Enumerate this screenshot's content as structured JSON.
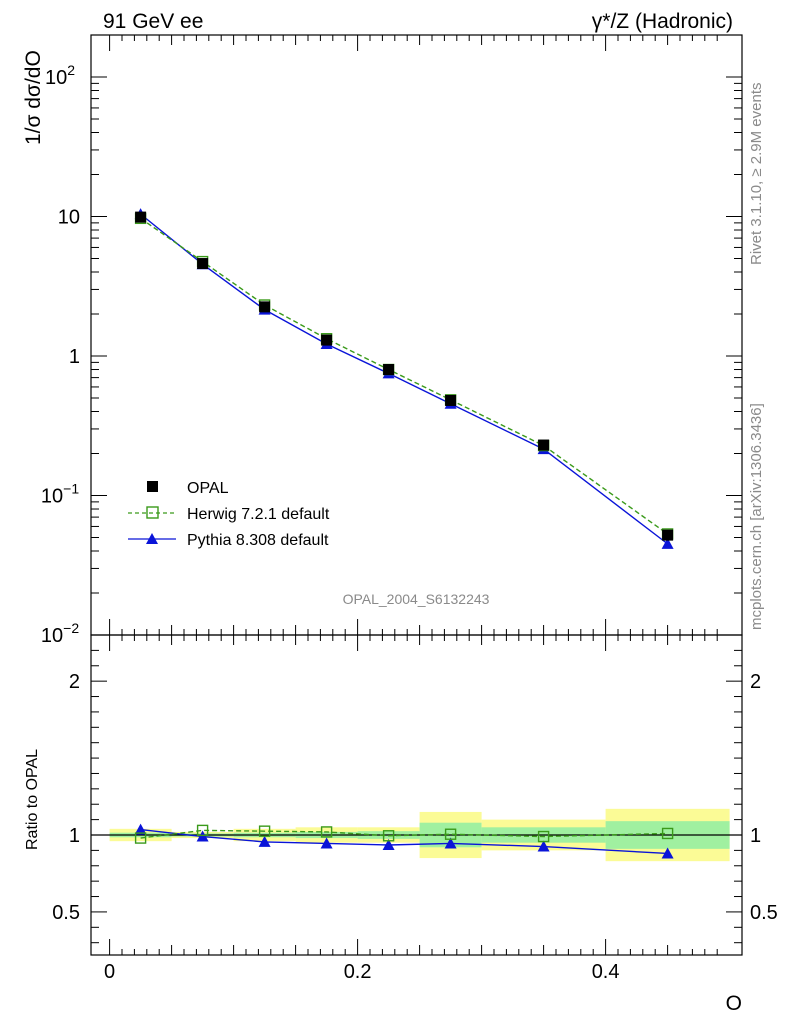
{
  "header": {
    "left_title": "91 GeV ee",
    "right_title": "γ*/Z (Hadronic)"
  },
  "side_labels": {
    "rivet": "Rivet 3.1.10, ≥ 2.9M events",
    "mcplots": "mcplots.cern.ch [arXiv:1306.3436]"
  },
  "watermark": "OPAL_2004_S6132243",
  "colors": {
    "opal": "#000000",
    "herwig": "#3a9a1a",
    "pythia": "#0a14d8",
    "band_outer": "#fbfb96",
    "band_inner": "#a0f0a0"
  },
  "chart_data": [
    {
      "type": "line",
      "panel": "main",
      "ylabel": "1/σ dσ/dO",
      "yscale": "log",
      "xlim": [
        -0.015,
        0.51
      ],
      "ylim": [
        0.01,
        200
      ],
      "yticks": [
        {
          "value": 100,
          "label": "10",
          "sup": "2"
        },
        {
          "value": 10,
          "label": "10",
          "sup": ""
        },
        {
          "value": 1,
          "label": "1",
          "sup": ""
        },
        {
          "value": 0.1,
          "label": "10",
          "sup": "−1"
        },
        {
          "value": 0.01,
          "label": "10",
          "sup": "−2"
        }
      ],
      "legend_position": "lower-left",
      "x": [
        0.025,
        0.075,
        0.125,
        0.175,
        0.225,
        0.275,
        0.35,
        0.45
      ],
      "series": [
        {
          "name": "OPAL",
          "style": "marker",
          "marker": "square-filled",
          "values": [
            9.9,
            4.6,
            2.25,
            1.3,
            0.8,
            0.48,
            0.23,
            0.052
          ]
        },
        {
          "name": "Herwig 7.2.1 default",
          "style": "dashed",
          "marker": "square-open",
          "values": [
            9.7,
            4.75,
            2.32,
            1.33,
            0.8,
            0.485,
            0.228,
            0.053
          ]
        },
        {
          "name": "Pythia 8.308 default",
          "style": "solid",
          "marker": "triangle-filled",
          "values": [
            10.4,
            4.55,
            2.15,
            1.22,
            0.75,
            0.455,
            0.215,
            0.045
          ]
        }
      ]
    },
    {
      "type": "line",
      "panel": "ratio",
      "ylabel": "Ratio to OPAL",
      "xlabel": "O",
      "xlim": [
        -0.015,
        0.51
      ],
      "ylim": [
        0.22,
        2.3
      ],
      "yticks": [
        {
          "value": 2,
          "label": "2"
        },
        {
          "value": 1,
          "label": "1"
        },
        {
          "value": 0.5,
          "label": "0.5"
        }
      ],
      "xticks": [
        {
          "value": 0,
          "label": "0"
        },
        {
          "value": 0.2,
          "label": "0.2"
        },
        {
          "value": 0.4,
          "label": "0.4"
        }
      ],
      "bins": [
        [
          0,
          0.05
        ],
        [
          0.05,
          0.1
        ],
        [
          0.1,
          0.15
        ],
        [
          0.15,
          0.2
        ],
        [
          0.2,
          0.25
        ],
        [
          0.25,
          0.3
        ],
        [
          0.3,
          0.4
        ],
        [
          0.4,
          0.5
        ]
      ],
      "band_outer": [
        0.04,
        0.02,
        0.04,
        0.05,
        0.05,
        0.15,
        0.1,
        0.17
      ],
      "band_inner": [
        0.015,
        0.01,
        0.015,
        0.02,
        0.025,
        0.08,
        0.05,
        0.09
      ],
      "x": [
        0.025,
        0.075,
        0.125,
        0.175,
        0.225,
        0.275,
        0.35,
        0.45
      ],
      "series": [
        {
          "name": "Herwig 7.2.1 default",
          "style": "dashed",
          "marker": "square-open",
          "values": [
            0.98,
            1.03,
            1.025,
            1.02,
            0.995,
            1.005,
            0.99,
            1.01
          ]
        },
        {
          "name": "Pythia 8.308 default",
          "style": "solid",
          "marker": "triangle-filled",
          "values": [
            1.035,
            0.99,
            0.955,
            0.945,
            0.935,
            0.945,
            0.925,
            0.88
          ]
        }
      ]
    }
  ]
}
